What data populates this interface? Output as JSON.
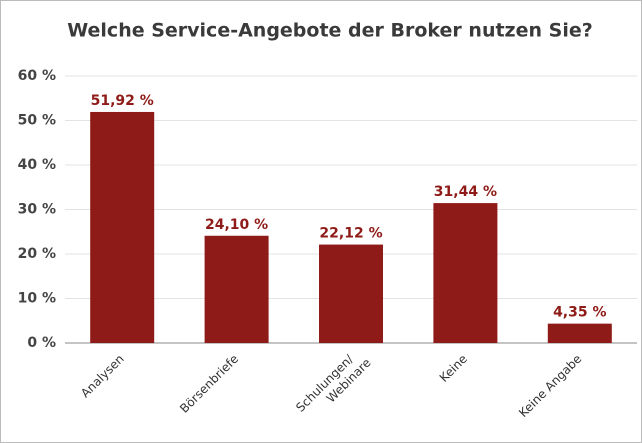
{
  "chart_data": {
    "type": "bar",
    "title": "Welche Service-Angebote der Broker nutzen Sie?",
    "categories": [
      "Analysen",
      "Börsenbriefe",
      "Schulungen/\nWebinare",
      "Keine",
      "Keine Angabe"
    ],
    "values": [
      51.92,
      24.1,
      22.12,
      31.44,
      4.35
    ],
    "value_labels": [
      "51,92 %",
      "24,10 %",
      "22,12 %",
      "31,44 %",
      "4,35 %"
    ],
    "color": "#8e1b17",
    "ylim": [
      0,
      60
    ],
    "yticks": [
      {
        "value": 0,
        "label": "0 %"
      },
      {
        "value": 10,
        "label": "10 %"
      },
      {
        "value": 20,
        "label": "20 %"
      },
      {
        "value": 30,
        "label": "30 %"
      },
      {
        "value": 40,
        "label": "40 %"
      },
      {
        "value": 50,
        "label": "50 %"
      },
      {
        "value": 60,
        "label": "60 %"
      }
    ],
    "grid": true
  }
}
